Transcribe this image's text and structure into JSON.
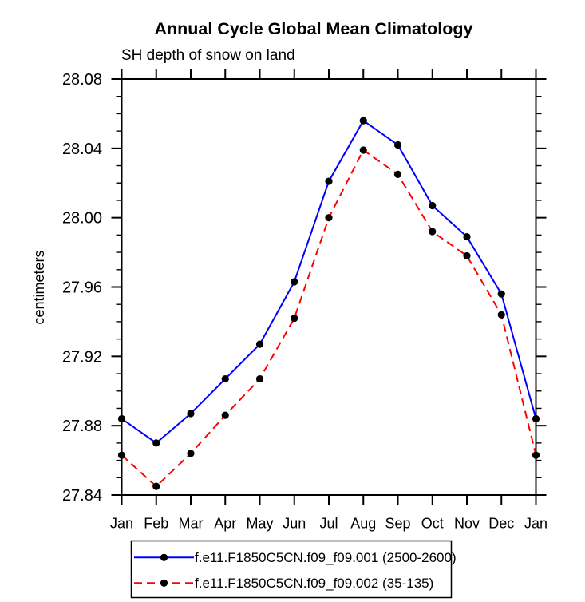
{
  "chart_data": {
    "type": "line",
    "title": "Annual Cycle Global Mean Climatology",
    "subtitle": "SH depth of snow on land",
    "ylabel": "centimeters",
    "xlabel": "",
    "categories": [
      "Jan",
      "Feb",
      "Mar",
      "Apr",
      "May",
      "Jun",
      "Jul",
      "Aug",
      "Sep",
      "Oct",
      "Nov",
      "Dec",
      "Jan"
    ],
    "ylim": [
      27.84,
      28.08
    ],
    "ytick_step": 0.04,
    "yminor_step": 0.01,
    "ytick_labels": [
      "27.84",
      "27.88",
      "27.92",
      "27.96",
      "28.00",
      "28.04",
      "28.08"
    ],
    "grid": false,
    "legend_position": "bottom",
    "axis_color": "#000000",
    "marker_color": "#000000",
    "series": [
      {
        "name": "f.e11.F1850C5CN.f09_f09.001 (2500-2600)",
        "color": "#0000ff",
        "dash": "solid",
        "values": [
          27.884,
          27.87,
          27.887,
          27.907,
          27.927,
          27.963,
          28.021,
          28.056,
          28.042,
          28.007,
          27.989,
          27.956,
          27.884
        ]
      },
      {
        "name": "f.e11.F1850C5CN.f09_f09.002 (35-135)",
        "color": "#ff0000",
        "dash": "dashed",
        "values": [
          27.863,
          27.845,
          27.864,
          27.886,
          27.907,
          27.942,
          28.0,
          28.039,
          28.025,
          27.992,
          27.978,
          27.944,
          27.863
        ]
      }
    ]
  }
}
